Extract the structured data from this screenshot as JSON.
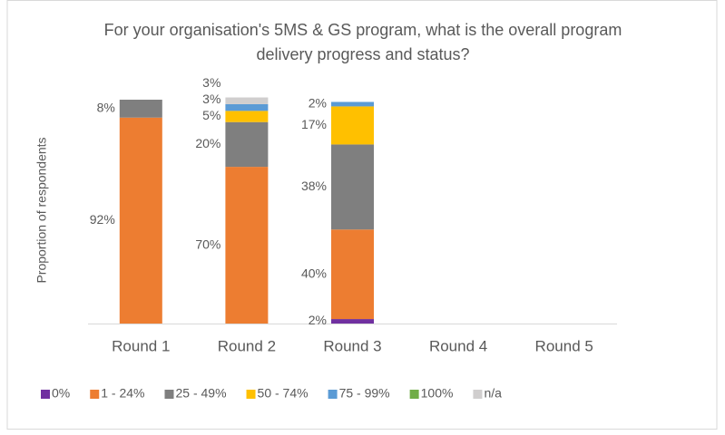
{
  "chart_data": {
    "type": "stacked_bar",
    "title": "For your organisation's 5MS & GS program, what is the overall program delivery progress and status?",
    "y_label": "Proportion of respondents",
    "categories": [
      "Round 1",
      "Round 2",
      "Round 3",
      "Round 4",
      "Round 5"
    ],
    "ylim": [
      0,
      100
    ],
    "legend": "bottom",
    "series": [
      {
        "name": "0%",
        "color": "#7030a0",
        "values": [
          null,
          null,
          2,
          null,
          null
        ],
        "value_labels": [
          null,
          null,
          "2%",
          null,
          null
        ]
      },
      {
        "name": "1 - 24%",
        "color": "#ed7d31",
        "values": [
          92,
          70,
          40,
          null,
          null
        ],
        "value_labels": [
          "92%",
          "70%",
          "40%",
          null,
          null
        ]
      },
      {
        "name": "25 - 49%",
        "color": "#7f7f7f",
        "values": [
          8,
          20,
          38,
          null,
          null
        ],
        "value_labels": [
          "8%",
          "20%",
          "38%",
          null,
          null
        ]
      },
      {
        "name": "50 - 74%",
        "color": "#ffc000",
        "values": [
          null,
          5,
          17,
          null,
          null
        ],
        "value_labels": [
          null,
          "5%",
          "17%",
          null,
          null
        ]
      },
      {
        "name": "75 - 99%",
        "color": "#5b9bd5",
        "values": [
          null,
          3,
          2,
          null,
          null
        ],
        "value_labels": [
          null,
          "3%",
          "2%",
          null,
          null
        ]
      },
      {
        "name": "100%",
        "color": "#70ad47",
        "values": [
          null,
          null,
          null,
          null,
          null
        ],
        "value_labels": [
          null,
          null,
          null,
          null,
          null
        ]
      },
      {
        "name": "n/a",
        "color": "#d0cece",
        "values": [
          null,
          3,
          null,
          null,
          null
        ],
        "value_labels": [
          null,
          "3%",
          null,
          null,
          null
        ]
      }
    ]
  }
}
